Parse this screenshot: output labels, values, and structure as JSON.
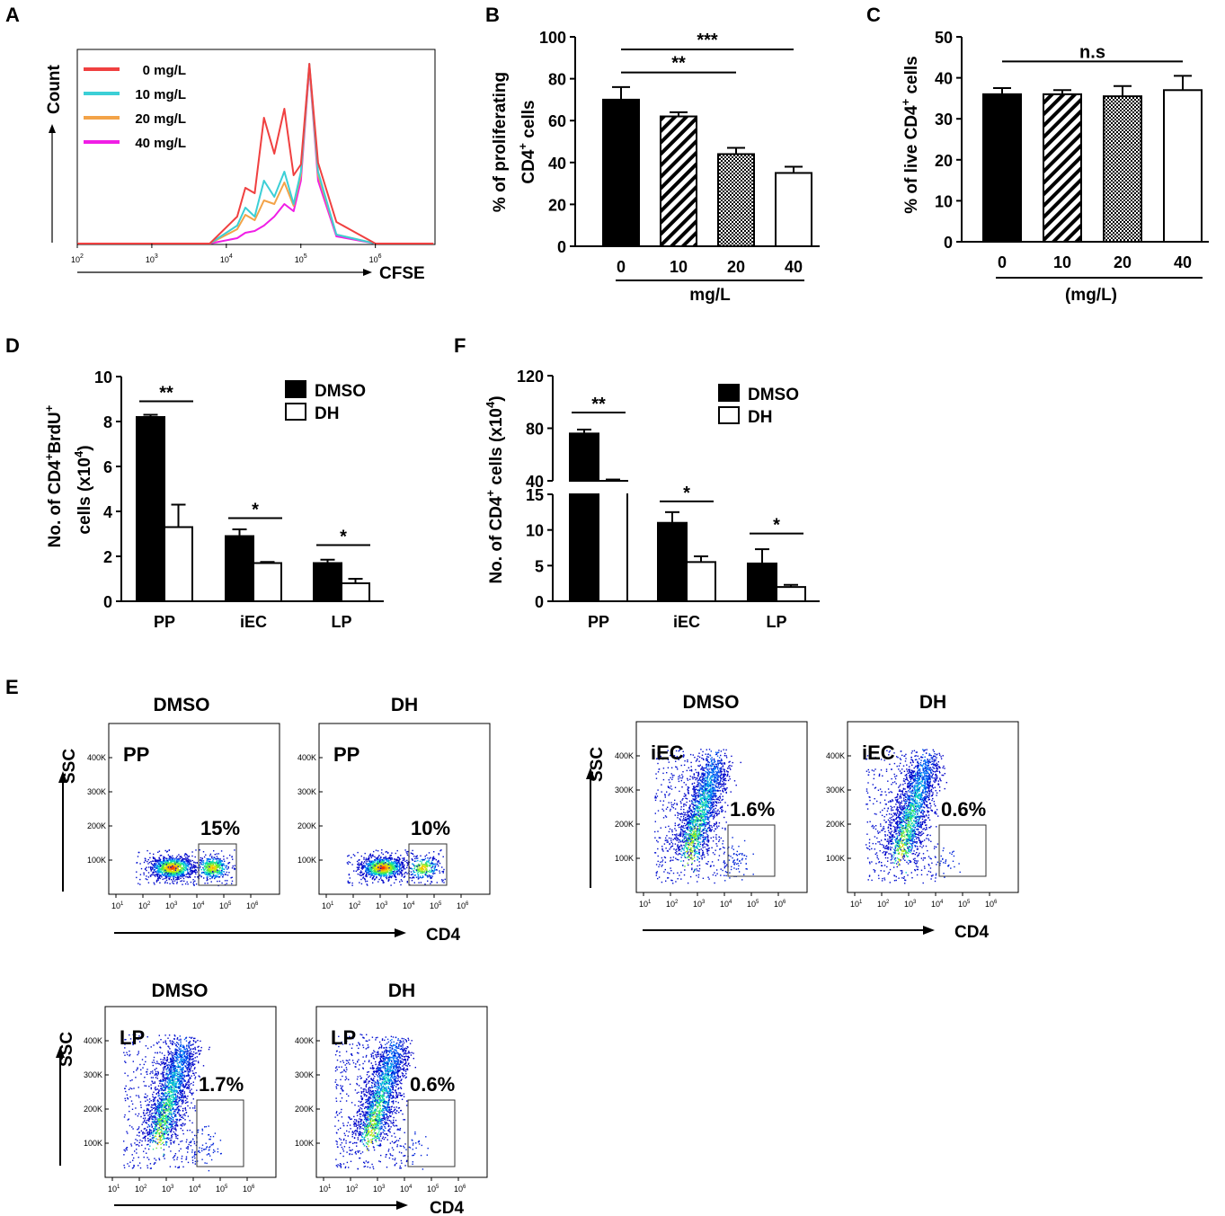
{
  "panel_labels": [
    "A",
    "B",
    "C",
    "D",
    "E",
    "F"
  ],
  "colors": {
    "zero": "#f04040",
    "ten": "#3ccfd6",
    "twenty": "#f3a348",
    "forty": "#f01ee6",
    "bar": "#000000"
  },
  "chart_data": [
    {
      "id": "A",
      "type": "line",
      "title": "",
      "xlabel": "CFSE",
      "ylabel": "Count",
      "x_scale": "log",
      "x_ticks": [
        "2",
        "3",
        "4",
        "5",
        "6"
      ],
      "legend": [
        "0 mg/L",
        "10 mg/L",
        "20 mg/L",
        "40 mg/L"
      ],
      "legend_position": "top-left",
      "series": [
        {
          "name": "0 mg/L",
          "x": [
            100,
            6000,
            14000,
            18000,
            24000,
            32000,
            44000,
            60000,
            80000,
            100000,
            130000,
            170000,
            300000,
            1000000,
            6000000
          ],
          "values": [
            0,
            0,
            15,
            31,
            28,
            70,
            50,
            75,
            38,
            44,
            100,
            45,
            12,
            0,
            0
          ]
        },
        {
          "name": "10 mg/L",
          "x": [
            100,
            6000,
            14000,
            18000,
            24000,
            32000,
            44000,
            60000,
            80000,
            100000,
            130000,
            170000,
            300000,
            1000000,
            6000000
          ],
          "values": [
            0,
            0,
            10,
            20,
            15,
            35,
            26,
            40,
            22,
            40,
            100,
            40,
            5,
            0,
            0
          ]
        },
        {
          "name": "20 mg/L",
          "x": [
            100,
            6000,
            14000,
            18000,
            24000,
            32000,
            44000,
            60000,
            80000,
            100000,
            130000,
            170000,
            300000,
            1000000,
            6000000
          ],
          "values": [
            0,
            0,
            8,
            16,
            13,
            24,
            22,
            34,
            21,
            38,
            99,
            38,
            5,
            0,
            0
          ]
        },
        {
          "name": "40 mg/L",
          "x": [
            100,
            6000,
            14000,
            18000,
            24000,
            32000,
            44000,
            60000,
            80000,
            100000,
            130000,
            170000,
            300000,
            1000000,
            6000000
          ],
          "values": [
            0,
            0,
            3,
            6,
            7,
            10,
            15,
            22,
            18,
            35,
            98,
            35,
            4,
            0,
            0
          ]
        }
      ]
    },
    {
      "id": "B",
      "type": "bar",
      "categories": [
        "0",
        "10",
        "20",
        "40"
      ],
      "values": [
        70,
        62,
        44,
        35
      ],
      "errors": [
        6,
        2,
        3,
        3
      ],
      "patterns": [
        "solid",
        "hatch",
        "checker",
        "empty"
      ],
      "ylim": [
        0,
        100
      ],
      "yticks": [
        "0",
        "20",
        "40",
        "60",
        "80",
        "100"
      ],
      "ylabel_line1": "% of proliferating",
      "ylabel_line2": "CD4",
      "ylabel_sup": "+",
      "ylabel_tail": " cells",
      "xlabel": "mg/L",
      "sig": [
        {
          "from": 0,
          "to": 2,
          "label": "**",
          "y": 83
        },
        {
          "from": 0,
          "to": 3,
          "label": "***",
          "y": 94
        }
      ]
    },
    {
      "id": "C",
      "type": "bar",
      "categories": [
        "0",
        "10",
        "20",
        "40"
      ],
      "values": [
        36,
        36,
        35.5,
        37
      ],
      "errors": [
        1.5,
        1,
        2.5,
        3.5
      ],
      "patterns": [
        "solid",
        "hatch",
        "checker",
        "empty"
      ],
      "ylim": [
        0,
        50
      ],
      "yticks": [
        "0",
        "10",
        "20",
        "30",
        "40",
        "50"
      ],
      "ylabel_pre": "% of live CD4",
      "ylabel_sup": "+",
      "ylabel_tail": " cells",
      "xlabel": "(mg/L)",
      "sig": [
        {
          "from": 0,
          "to": 3,
          "label": "n.s",
          "y": 44
        }
      ]
    },
    {
      "id": "D",
      "type": "bar",
      "categories": [
        "PP",
        "iEC",
        "LP"
      ],
      "series": [
        {
          "name": "DMSO",
          "values": [
            8.2,
            2.9,
            1.7
          ],
          "errors": [
            0.1,
            0.3,
            0.15
          ]
        },
        {
          "name": "DH",
          "values": [
            3.3,
            1.7,
            0.8
          ],
          "errors": [
            1.0,
            0.05,
            0.2
          ]
        }
      ],
      "ylim": [
        0,
        10
      ],
      "yticks": [
        "0",
        "2",
        "4",
        "6",
        "8",
        "10"
      ],
      "ylabel_line1_pre": "No. of CD4",
      "ylabel_line1_sup1": "+",
      "ylabel_line1_mid": "BrdU",
      "ylabel_line1_sup2": "+",
      "ylabel_line2_pre": "cells (x10",
      "ylabel_line2_sup": "4",
      "ylabel_line2_tail": ")",
      "sig": [
        {
          "group": 0,
          "label": "**",
          "y": 8.9
        },
        {
          "group": 1,
          "label": "*",
          "y": 3.7
        },
        {
          "group": 2,
          "label": "*",
          "y": 2.5
        }
      ],
      "legend": [
        "DMSO",
        "DH"
      ],
      "legend_position": "top-right"
    },
    {
      "id": "F",
      "type": "bar",
      "categories": [
        "PP",
        "iEC",
        "LP"
      ],
      "series": [
        {
          "name": "DMSO",
          "values": [
            76,
            11,
            5.3
          ],
          "errors": [
            3,
            1.5,
            2
          ]
        },
        {
          "name": "DH",
          "values": [
            40,
            5.5,
            2
          ],
          "errors": [
            1,
            0.8,
            0.3
          ]
        }
      ],
      "axis_break": [
        15,
        40
      ],
      "ylim": [
        0,
        120
      ],
      "yticks_low": [
        "0",
        "5",
        "10",
        "15"
      ],
      "yticks_high": [
        "40",
        "80",
        "120"
      ],
      "ylabel_pre": "No. of CD4",
      "ylabel_sup": "+",
      "ylabel_mid": " cells (x10",
      "ylabel_sup2": "4",
      "ylabel_tail": ")",
      "sig": [
        {
          "group": 0,
          "label": "**",
          "y": 92
        },
        {
          "group": 1,
          "label": "*",
          "y": 14
        },
        {
          "group": 2,
          "label": "*",
          "y": 9.5
        }
      ],
      "legend": [
        "DMSO",
        "DH"
      ],
      "legend_position": "top-right"
    }
  ],
  "flow": {
    "y_axis": "SSC",
    "x_axis": "CD4",
    "y_ticks": [
      "100K",
      "200K",
      "300K",
      "400K"
    ],
    "x_ticks": [
      "1",
      "2",
      "3",
      "4",
      "5",
      "6"
    ],
    "groups": [
      {
        "tissue": "PP",
        "plots": [
          {
            "condition": "DMSO",
            "label": "PP",
            "percent": "15%"
          },
          {
            "condition": "DH",
            "label": "PP",
            "percent": "10%"
          }
        ]
      },
      {
        "tissue": "iEC",
        "plots": [
          {
            "condition": "DMSO",
            "label": "iEC",
            "percent": "1.6%"
          },
          {
            "condition": "DH",
            "label": "iEC",
            "percent": "0.6%"
          }
        ]
      },
      {
        "tissue": "LP",
        "plots": [
          {
            "condition": "DMSO",
            "label": "LP",
            "percent": "1.7%"
          },
          {
            "condition": "DH",
            "label": "LP",
            "percent": "0.6%"
          }
        ]
      }
    ]
  }
}
